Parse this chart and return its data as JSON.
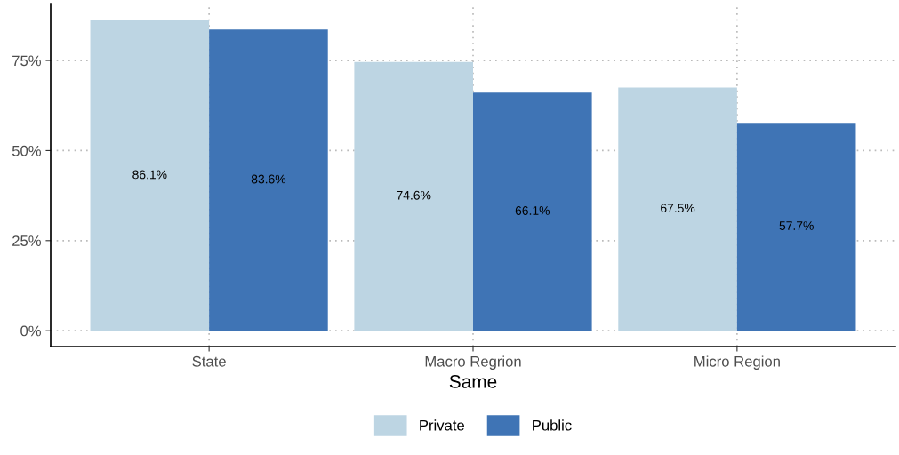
{
  "chart_data": {
    "type": "bar",
    "xlabel": "Same",
    "categories": [
      "State",
      "Macro Regrion",
      "Micro Region"
    ],
    "series": [
      {
        "name": "Private",
        "color": "#bdd5e3",
        "values": [
          86.1,
          74.6,
          67.5
        ],
        "value_labels": [
          "86.1%",
          "74.6%",
          "67.5%"
        ]
      },
      {
        "name": "Public",
        "color": "#3f74b5",
        "values": [
          83.6,
          66.1,
          57.7
        ],
        "value_labels": [
          "83.6%",
          "66.1%",
          "57.7%"
        ]
      }
    ],
    "ylim": [
      -4.4,
      90.8
    ],
    "yticks": [
      {
        "value": 0,
        "label": "0%"
      },
      {
        "value": 25,
        "label": "25%"
      },
      {
        "value": 50,
        "label": "50%"
      },
      {
        "value": 75,
        "label": "75%"
      }
    ],
    "grid": true,
    "legend": "bottom"
  }
}
